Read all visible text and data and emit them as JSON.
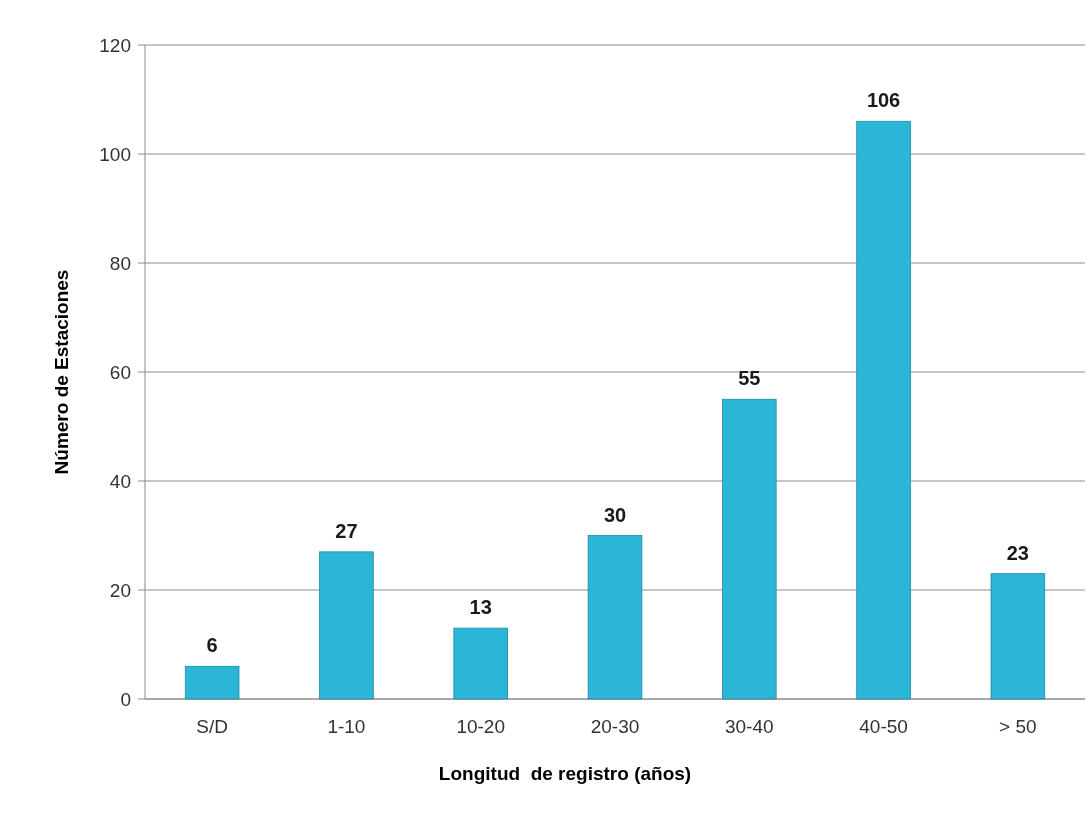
{
  "chart_data": {
    "type": "bar",
    "xlabel": "Longitud  de registro (años)",
    "ylabel": "Número de Estaciones",
    "categories": [
      "S/D",
      "1-10",
      "10-20",
      "20-30",
      "30-40",
      "40-50",
      "> 50"
    ],
    "values": [
      6,
      27,
      13,
      30,
      55,
      106,
      23
    ],
    "color": "#2bb5d6",
    "ylim": [
      0,
      120
    ],
    "yticks": [
      0,
      20,
      40,
      60,
      80,
      100,
      120
    ],
    "grid": "y",
    "data_labels": true
  }
}
